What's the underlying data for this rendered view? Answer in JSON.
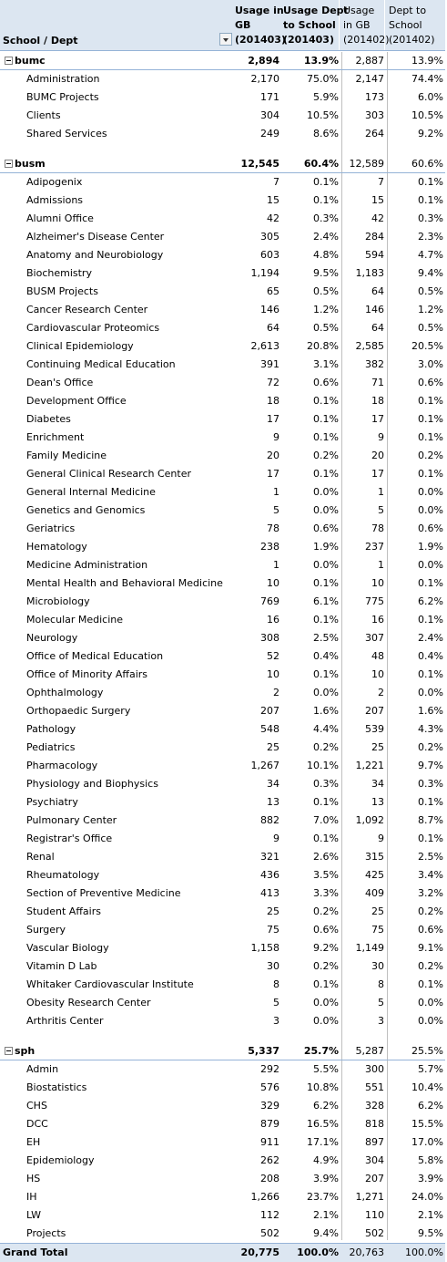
{
  "header": {
    "row_label": "School / Dept",
    "col1": [
      "Usage in",
      "GB",
      "(201403)"
    ],
    "col2": [
      "Usage Dept",
      "to School",
      "(201403)"
    ],
    "col3": [
      "Usage",
      "in GB",
      "(201402)"
    ],
    "col4": [
      "Dept to",
      "School",
      "(201402)"
    ]
  },
  "schools": [
    {
      "name": "bumc",
      "usage": "2,894",
      "pct": "13.9%",
      "usage_prev": "2,887",
      "pct_prev": "13.9%",
      "depts": [
        {
          "name": "Administration",
          "usage": "2,170",
          "pct": "75.0%",
          "usage_prev": "2,147",
          "pct_prev": "74.4%"
        },
        {
          "name": "BUMC Projects",
          "usage": "171",
          "pct": "5.9%",
          "usage_prev": "173",
          "pct_prev": "6.0%"
        },
        {
          "name": "Clients",
          "usage": "304",
          "pct": "10.5%",
          "usage_prev": "303",
          "pct_prev": "10.5%"
        },
        {
          "name": "Shared Services",
          "usage": "249",
          "pct": "8.6%",
          "usage_prev": "264",
          "pct_prev": "9.2%"
        }
      ]
    },
    {
      "name": "busm",
      "usage": "12,545",
      "pct": "60.4%",
      "usage_prev": "12,589",
      "pct_prev": "60.6%",
      "depts": [
        {
          "name": "Adipogenix",
          "usage": "7",
          "pct": "0.1%",
          "usage_prev": "7",
          "pct_prev": "0.1%"
        },
        {
          "name": "Admissions",
          "usage": "15",
          "pct": "0.1%",
          "usage_prev": "15",
          "pct_prev": "0.1%"
        },
        {
          "name": "Alumni Office",
          "usage": "42",
          "pct": "0.3%",
          "usage_prev": "42",
          "pct_prev": "0.3%"
        },
        {
          "name": "Alzheimer's Disease Center",
          "usage": "305",
          "pct": "2.4%",
          "usage_prev": "284",
          "pct_prev": "2.3%"
        },
        {
          "name": "Anatomy and Neurobiology",
          "usage": "603",
          "pct": "4.8%",
          "usage_prev": "594",
          "pct_prev": "4.7%"
        },
        {
          "name": "Biochemistry",
          "usage": "1,194",
          "pct": "9.5%",
          "usage_prev": "1,183",
          "pct_prev": "9.4%"
        },
        {
          "name": "BUSM Projects",
          "usage": "65",
          "pct": "0.5%",
          "usage_prev": "64",
          "pct_prev": "0.5%"
        },
        {
          "name": "Cancer Research Center",
          "usage": "146",
          "pct": "1.2%",
          "usage_prev": "146",
          "pct_prev": "1.2%"
        },
        {
          "name": "Cardiovascular Proteomics",
          "usage": "64",
          "pct": "0.5%",
          "usage_prev": "64",
          "pct_prev": "0.5%"
        },
        {
          "name": "Clinical Epidemiology",
          "usage": "2,613",
          "pct": "20.8%",
          "usage_prev": "2,585",
          "pct_prev": "20.5%"
        },
        {
          "name": "Continuing Medical Education",
          "usage": "391",
          "pct": "3.1%",
          "usage_prev": "382",
          "pct_prev": "3.0%"
        },
        {
          "name": "Dean's Office",
          "usage": "72",
          "pct": "0.6%",
          "usage_prev": "71",
          "pct_prev": "0.6%"
        },
        {
          "name": "Development Office",
          "usage": "18",
          "pct": "0.1%",
          "usage_prev": "18",
          "pct_prev": "0.1%"
        },
        {
          "name": "Diabetes",
          "usage": "17",
          "pct": "0.1%",
          "usage_prev": "17",
          "pct_prev": "0.1%"
        },
        {
          "name": "Enrichment",
          "usage": "9",
          "pct": "0.1%",
          "usage_prev": "9",
          "pct_prev": "0.1%"
        },
        {
          "name": "Family Medicine",
          "usage": "20",
          "pct": "0.2%",
          "usage_prev": "20",
          "pct_prev": "0.2%"
        },
        {
          "name": "General Clinical Research Center",
          "usage": "17",
          "pct": "0.1%",
          "usage_prev": "17",
          "pct_prev": "0.1%"
        },
        {
          "name": "General Internal Medicine",
          "usage": "1",
          "pct": "0.0%",
          "usage_prev": "1",
          "pct_prev": "0.0%"
        },
        {
          "name": "Genetics and Genomics",
          "usage": "5",
          "pct": "0.0%",
          "usage_prev": "5",
          "pct_prev": "0.0%"
        },
        {
          "name": "Geriatrics",
          "usage": "78",
          "pct": "0.6%",
          "usage_prev": "78",
          "pct_prev": "0.6%"
        },
        {
          "name": "Hematology",
          "usage": "238",
          "pct": "1.9%",
          "usage_prev": "237",
          "pct_prev": "1.9%"
        },
        {
          "name": "Medicine Administration",
          "usage": "1",
          "pct": "0.0%",
          "usage_prev": "1",
          "pct_prev": "0.0%"
        },
        {
          "name": "Mental Health and Behavioral Medicine",
          "usage": "10",
          "pct": "0.1%",
          "usage_prev": "10",
          "pct_prev": "0.1%"
        },
        {
          "name": "Microbiology",
          "usage": "769",
          "pct": "6.1%",
          "usage_prev": "775",
          "pct_prev": "6.2%"
        },
        {
          "name": "Molecular Medicine",
          "usage": "16",
          "pct": "0.1%",
          "usage_prev": "16",
          "pct_prev": "0.1%"
        },
        {
          "name": "Neurology",
          "usage": "308",
          "pct": "2.5%",
          "usage_prev": "307",
          "pct_prev": "2.4%"
        },
        {
          "name": "Office of Medical Education",
          "usage": "52",
          "pct": "0.4%",
          "usage_prev": "48",
          "pct_prev": "0.4%"
        },
        {
          "name": "Office of Minority Affairs",
          "usage": "10",
          "pct": "0.1%",
          "usage_prev": "10",
          "pct_prev": "0.1%"
        },
        {
          "name": "Ophthalmology",
          "usage": "2",
          "pct": "0.0%",
          "usage_prev": "2",
          "pct_prev": "0.0%"
        },
        {
          "name": "Orthopaedic Surgery",
          "usage": "207",
          "pct": "1.6%",
          "usage_prev": "207",
          "pct_prev": "1.6%"
        },
        {
          "name": "Pathology",
          "usage": "548",
          "pct": "4.4%",
          "usage_prev": "539",
          "pct_prev": "4.3%"
        },
        {
          "name": "Pediatrics",
          "usage": "25",
          "pct": "0.2%",
          "usage_prev": "25",
          "pct_prev": "0.2%"
        },
        {
          "name": "Pharmacology",
          "usage": "1,267",
          "pct": "10.1%",
          "usage_prev": "1,221",
          "pct_prev": "9.7%"
        },
        {
          "name": "Physiology and Biophysics",
          "usage": "34",
          "pct": "0.3%",
          "usage_prev": "34",
          "pct_prev": "0.3%"
        },
        {
          "name": "Psychiatry",
          "usage": "13",
          "pct": "0.1%",
          "usage_prev": "13",
          "pct_prev": "0.1%"
        },
        {
          "name": "Pulmonary Center",
          "usage": "882",
          "pct": "7.0%",
          "usage_prev": "1,092",
          "pct_prev": "8.7%"
        },
        {
          "name": "Registrar's Office",
          "usage": "9",
          "pct": "0.1%",
          "usage_prev": "9",
          "pct_prev": "0.1%"
        },
        {
          "name": "Renal",
          "usage": "321",
          "pct": "2.6%",
          "usage_prev": "315",
          "pct_prev": "2.5%"
        },
        {
          "name": "Rheumatology",
          "usage": "436",
          "pct": "3.5%",
          "usage_prev": "425",
          "pct_prev": "3.4%"
        },
        {
          "name": "Section of Preventive Medicine",
          "usage": "413",
          "pct": "3.3%",
          "usage_prev": "409",
          "pct_prev": "3.2%"
        },
        {
          "name": "Student Affairs",
          "usage": "25",
          "pct": "0.2%",
          "usage_prev": "25",
          "pct_prev": "0.2%"
        },
        {
          "name": "Surgery",
          "usage": "75",
          "pct": "0.6%",
          "usage_prev": "75",
          "pct_prev": "0.6%"
        },
        {
          "name": "Vascular Biology",
          "usage": "1,158",
          "pct": "9.2%",
          "usage_prev": "1,149",
          "pct_prev": "9.1%"
        },
        {
          "name": "Vitamin D Lab",
          "usage": "30",
          "pct": "0.2%",
          "usage_prev": "30",
          "pct_prev": "0.2%"
        },
        {
          "name": "Whitaker Cardiovascular Institute",
          "usage": "8",
          "pct": "0.1%",
          "usage_prev": "8",
          "pct_prev": "0.1%"
        },
        {
          "name": "Obesity Research Center",
          "usage": "5",
          "pct": "0.0%",
          "usage_prev": "5",
          "pct_prev": "0.0%"
        },
        {
          "name": "Arthritis Center",
          "usage": "3",
          "pct": "0.0%",
          "usage_prev": "3",
          "pct_prev": "0.0%"
        }
      ]
    },
    {
      "name": "sph",
      "usage": "5,337",
      "pct": "25.7%",
      "usage_prev": "5,287",
      "pct_prev": "25.5%",
      "depts": [
        {
          "name": "Admin",
          "usage": "292",
          "pct": "5.5%",
          "usage_prev": "300",
          "pct_prev": "5.7%"
        },
        {
          "name": "Biostatistics",
          "usage": "576",
          "pct": "10.8%",
          "usage_prev": "551",
          "pct_prev": "10.4%"
        },
        {
          "name": "CHS",
          "usage": "329",
          "pct": "6.2%",
          "usage_prev": "328",
          "pct_prev": "6.2%"
        },
        {
          "name": "DCC",
          "usage": "879",
          "pct": "16.5%",
          "usage_prev": "818",
          "pct_prev": "15.5%"
        },
        {
          "name": "EH",
          "usage": "911",
          "pct": "17.1%",
          "usage_prev": "897",
          "pct_prev": "17.0%"
        },
        {
          "name": "Epidemiology",
          "usage": "262",
          "pct": "4.9%",
          "usage_prev": "304",
          "pct_prev": "5.8%"
        },
        {
          "name": "HS",
          "usage": "208",
          "pct": "3.9%",
          "usage_prev": "207",
          "pct_prev": "3.9%"
        },
        {
          "name": "IH",
          "usage": "1,266",
          "pct": "23.7%",
          "usage_prev": "1,271",
          "pct_prev": "24.0%"
        },
        {
          "name": "LW",
          "usage": "112",
          "pct": "2.1%",
          "usage_prev": "110",
          "pct_prev": "2.1%"
        },
        {
          "name": "Projects",
          "usage": "502",
          "pct": "9.4%",
          "usage_prev": "502",
          "pct_prev": "9.5%"
        }
      ]
    }
  ],
  "grand_total": {
    "name": "Grand Total",
    "usage": "20,775",
    "pct": "100.0%",
    "usage_prev": "20,763",
    "pct_prev": "100.0%"
  }
}
